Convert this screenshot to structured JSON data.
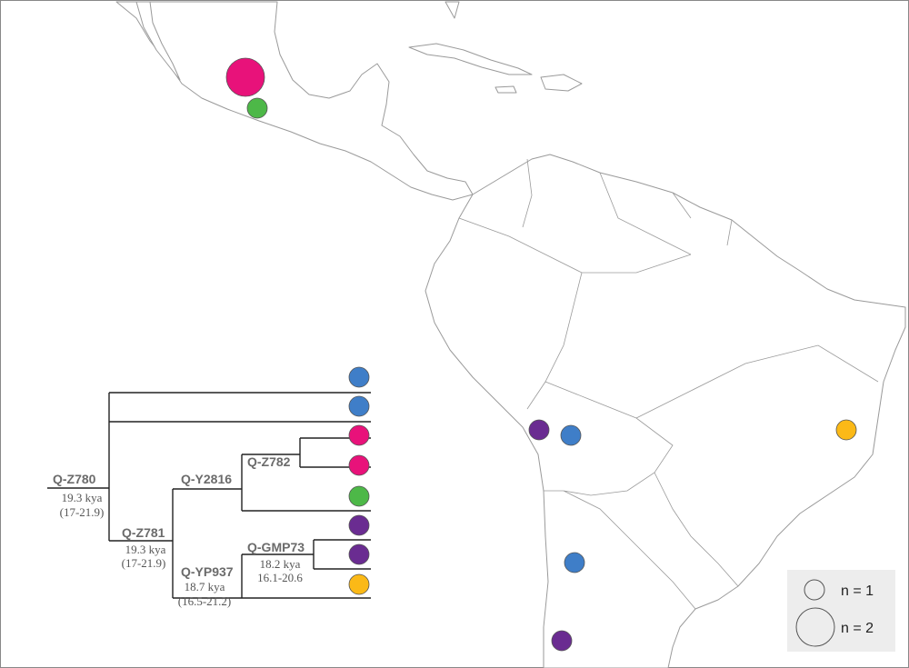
{
  "tree": {
    "nodes": [
      {
        "label": "Q-Z780",
        "age": "19.3 kya",
        "ci": "(17-21.9)"
      },
      {
        "label": "Q-Z781",
        "age": "19.3 kya",
        "ci": "(17-21.9)"
      },
      {
        "label": "Q-Y2816"
      },
      {
        "label": "Q-Z782"
      },
      {
        "label": "Q-YP937",
        "age": "18.7 kya",
        "ci": "(16.5-21.2)"
      },
      {
        "label": "Q-GMP73",
        "age": "18.2 kya",
        "ci": "16.1-20.6"
      }
    ],
    "tips": [
      {
        "color": "#3f7ec8"
      },
      {
        "color": "#3f7ec8"
      },
      {
        "color": "#e8127a"
      },
      {
        "color": "#e8127a"
      },
      {
        "color": "#4db848"
      },
      {
        "color": "#6a2c91"
      },
      {
        "color": "#6a2c91"
      },
      {
        "color": "#fbb917"
      }
    ]
  },
  "samples": [
    {
      "n": 2,
      "color": "#e8127a"
    },
    {
      "n": 1,
      "color": "#4db848"
    },
    {
      "n": 1,
      "color": "#6a2c91"
    },
    {
      "n": 1,
      "color": "#3f7ec8"
    },
    {
      "n": 1,
      "color": "#fbb917"
    },
    {
      "n": 1,
      "color": "#3f7ec8"
    },
    {
      "n": 1,
      "color": "#6a2c91"
    }
  ],
  "legend": [
    {
      "n": 1,
      "label": "n = 1"
    },
    {
      "n": 2,
      "label": "n = 2"
    }
  ]
}
